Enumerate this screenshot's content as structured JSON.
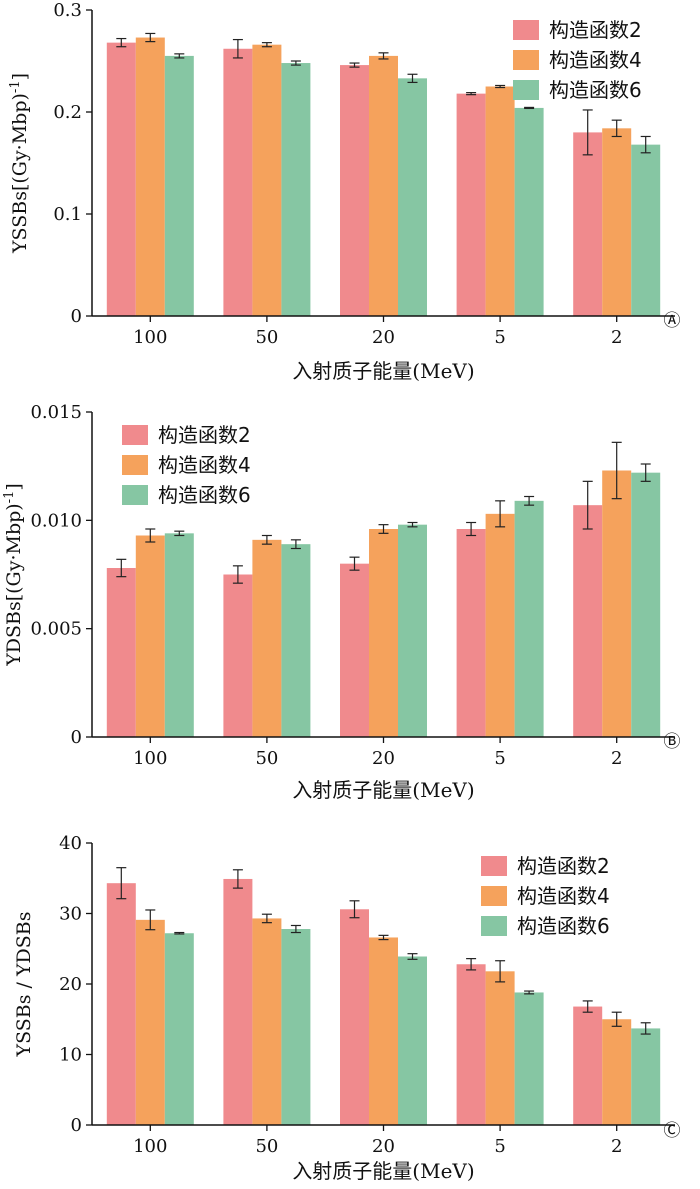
{
  "colors": {
    "series_1": "#f08a8d",
    "series_2": "#f5a25c",
    "series_3": "#86c6a3"
  },
  "chart_data": [
    {
      "type": "bar",
      "panel": "A",
      "panel_tag": "Ⓐ",
      "title": "",
      "xlabel": "入射质子能量(MeV)",
      "ylabel": "YSSBs[(Gy·Mbp)-1]",
      "ylabel_main": "YSSBs[(Gy·Mbp)",
      "ylabel_sup": "-1",
      "ylabel_tail": "]",
      "categories": [
        "100",
        "50",
        "20",
        "5",
        "2"
      ],
      "ylim": [
        0,
        0.3
      ],
      "yticks": [
        0,
        0.1,
        0.2,
        0.3
      ],
      "ytick_labels": [
        "0",
        "0.1",
        "0.2",
        "0.3"
      ],
      "legend_position": "top-right",
      "grid": false,
      "series": [
        {
          "name": "构造函数2",
          "values": [
            0.268,
            0.262,
            0.246,
            0.218,
            0.18
          ],
          "errors": [
            0.004,
            0.009,
            0.002,
            0.001,
            0.022
          ]
        },
        {
          "name": "构造函数4",
          "values": [
            0.273,
            0.266,
            0.255,
            0.225,
            0.184
          ],
          "errors": [
            0.004,
            0.002,
            0.003,
            0.001,
            0.008
          ]
        },
        {
          "name": "构造函数6",
          "values": [
            0.255,
            0.248,
            0.233,
            0.204,
            0.168
          ],
          "errors": [
            0.002,
            0.002,
            0.004,
            0.0005,
            0.008
          ]
        }
      ]
    },
    {
      "type": "bar",
      "panel": "B",
      "panel_tag": "Ⓑ",
      "title": "",
      "xlabel": "入射质子能量(MeV)",
      "ylabel": "YDSBs[(Gy·Mbp)-1]",
      "ylabel_main": "YDSBs[(Gy·Mbp)",
      "ylabel_sup": "-1",
      "ylabel_tail": "]",
      "categories": [
        "100",
        "50",
        "20",
        "5",
        "2"
      ],
      "ylim": [
        0,
        0.015
      ],
      "yticks": [
        0,
        0.005,
        0.01,
        0.015
      ],
      "ytick_labels": [
        "0",
        "0.005",
        "0.010",
        "0.015"
      ],
      "legend_position": "top-left",
      "grid": false,
      "series": [
        {
          "name": "构造函数2",
          "values": [
            0.0078,
            0.0075,
            0.008,
            0.0096,
            0.0107
          ],
          "errors": [
            0.0004,
            0.0004,
            0.0003,
            0.0003,
            0.0011
          ]
        },
        {
          "name": "构造函数4",
          "values": [
            0.0093,
            0.0091,
            0.0096,
            0.0103,
            0.0123
          ],
          "errors": [
            0.0003,
            0.0002,
            0.0002,
            0.0006,
            0.0013
          ]
        },
        {
          "name": "构造函数6",
          "values": [
            0.0094,
            0.0089,
            0.0098,
            0.0109,
            0.0122
          ],
          "errors": [
            0.0001,
            0.0002,
            0.0001,
            0.0002,
            0.0004
          ]
        }
      ]
    },
    {
      "type": "bar",
      "panel": "C",
      "panel_tag": "Ⓒ",
      "title": "",
      "xlabel": "入射质子能量(MeV)",
      "ylabel": "YSSBs / YDSBs",
      "ylabel_main": "YSSBs / YDSBs",
      "ylabel_sup": "",
      "ylabel_tail": "",
      "categories": [
        "100",
        "50",
        "20",
        "5",
        "2"
      ],
      "ylim": [
        0,
        40
      ],
      "yticks": [
        0,
        10,
        20,
        30,
        40
      ],
      "ytick_labels": [
        "0",
        "10",
        "20",
        "30",
        "40"
      ],
      "legend_position": "top-right",
      "grid": false,
      "series": [
        {
          "name": "构造函数2",
          "values": [
            34.3,
            34.9,
            30.6,
            22.8,
            16.8
          ],
          "errors": [
            2.2,
            1.3,
            1.2,
            0.8,
            0.8
          ]
        },
        {
          "name": "构造函数4",
          "values": [
            29.1,
            29.3,
            26.6,
            21.8,
            15.0
          ],
          "errors": [
            1.4,
            0.6,
            0.3,
            1.5,
            1.0
          ]
        },
        {
          "name": "构造函数6",
          "values": [
            27.2,
            27.8,
            23.9,
            18.8,
            13.7
          ],
          "errors": [
            0.1,
            0.5,
            0.4,
            0.2,
            0.8
          ]
        }
      ]
    }
  ]
}
